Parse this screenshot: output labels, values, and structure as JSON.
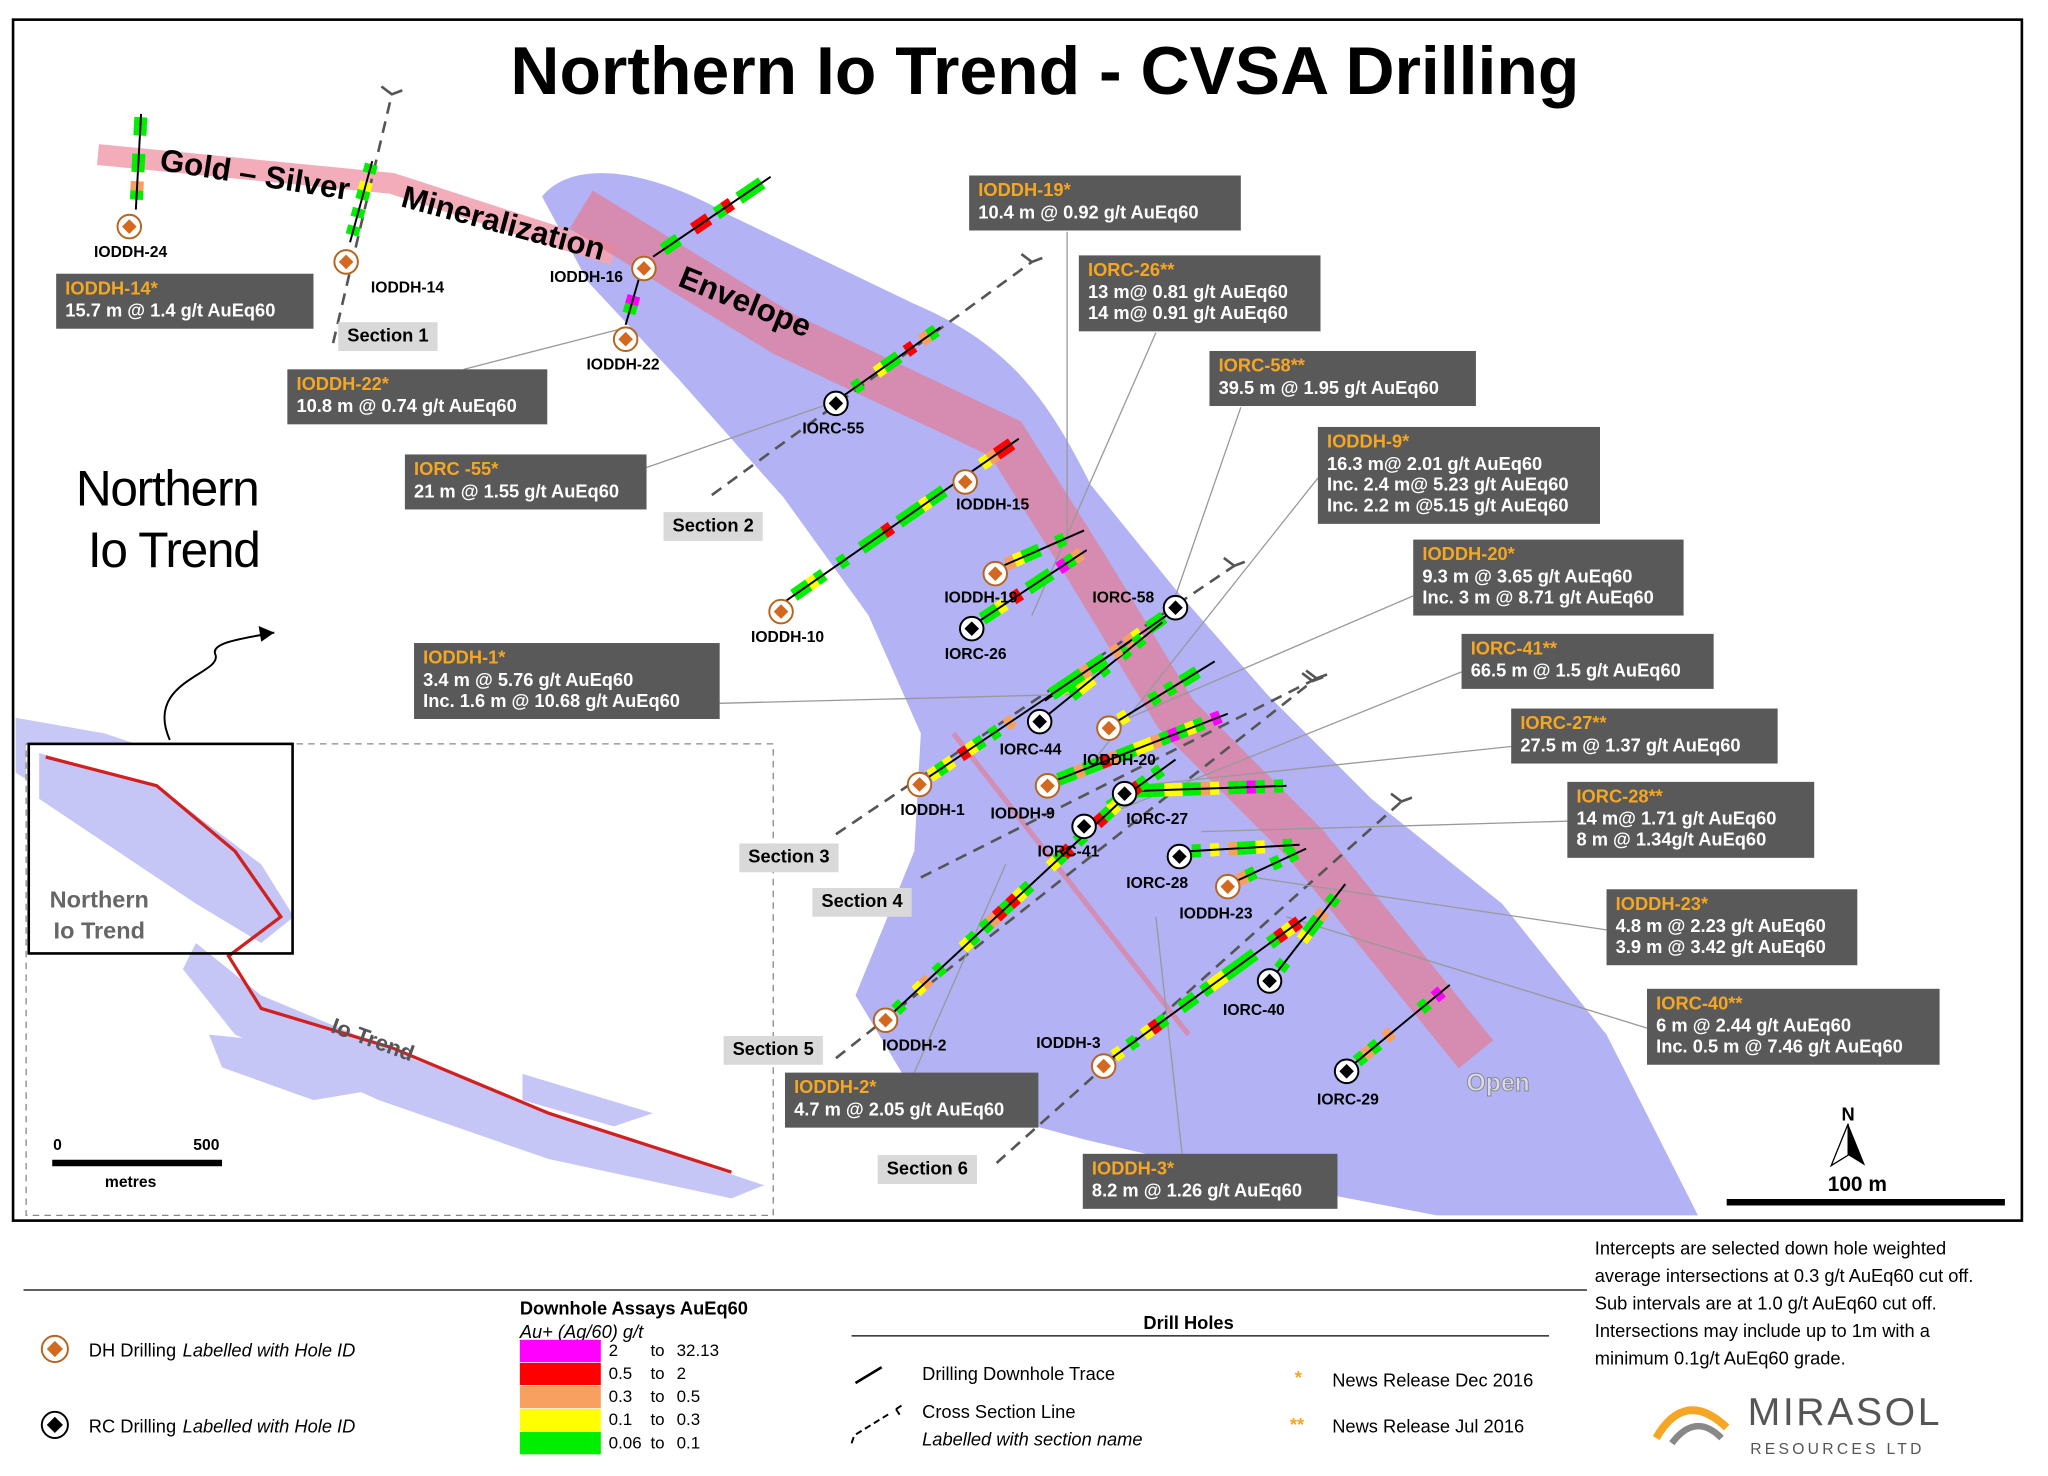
{
  "title": "Northern Io Trend - CVSA Drilling",
  "region_label": [
    "Northern",
    "Io Trend"
  ],
  "envelope_label": [
    "Gold – Silver",
    "Mineralization",
    "Envelope"
  ],
  "open_label": "Open",
  "holes": [
    {
      "id": "IODDH-24",
      "symbol": "DH"
    },
    {
      "id": "IODDH-14",
      "symbol": "DH"
    },
    {
      "id": "IODDH-16",
      "symbol": "DH"
    },
    {
      "id": "IODDH-22",
      "symbol": "DH"
    },
    {
      "id": "IORC-55",
      "symbol": "RC"
    },
    {
      "id": "IODDH-15",
      "symbol": "DH"
    },
    {
      "id": "IODDH-19",
      "symbol": "DH"
    },
    {
      "id": "IODDH-10",
      "symbol": "DH"
    },
    {
      "id": "IORC-26",
      "symbol": "RC"
    },
    {
      "id": "IORC-58",
      "symbol": "RC"
    },
    {
      "id": "IORC-44",
      "symbol": "RC"
    },
    {
      "id": "IODDH-20",
      "symbol": "DH"
    },
    {
      "id": "IODDH-1",
      "symbol": "DH"
    },
    {
      "id": "IODDH-9",
      "symbol": "DH"
    },
    {
      "id": "IORC-27",
      "symbol": "RC"
    },
    {
      "id": "IORC-41",
      "symbol": "RC"
    },
    {
      "id": "IORC-28",
      "symbol": "RC"
    },
    {
      "id": "IODDH-23",
      "symbol": "DH"
    },
    {
      "id": "IORC-40",
      "symbol": "RC"
    },
    {
      "id": "IODDH-2",
      "symbol": "DH"
    },
    {
      "id": "IODDH-3",
      "symbol": "DH"
    },
    {
      "id": "IORC-29",
      "symbol": "RC"
    }
  ],
  "callouts": [
    {
      "title": "IODDH-14*",
      "lines": [
        "15.7 m @ 1.4 g/t AuEq60"
      ]
    },
    {
      "title": "IODDH-22*",
      "lines": [
        "10.8 m @ 0.74 g/t AuEq60"
      ]
    },
    {
      "title": "IORC -55*",
      "lines": [
        "21 m @ 1.55 g/t AuEq60"
      ]
    },
    {
      "title": "IODDH-19*",
      "lines": [
        "10.4 m @ 0.92 g/t AuEq60"
      ]
    },
    {
      "title": "IORC-26**",
      "lines": [
        "13 m@ 0.81 g/t AuEq60",
        "14 m@ 0.91 g/t AuEq60"
      ]
    },
    {
      "title": "IORC-58**",
      "lines": [
        "39.5 m @ 1.95 g/t AuEq60"
      ]
    },
    {
      "title": "IODDH-9*",
      "lines": [
        "16.3 m@ 2.01 g/t AuEq60",
        "Inc. 2.4 m@ 5.23 g/t AuEq60",
        "Inc. 2.2 m @5.15 g/t AuEq60"
      ]
    },
    {
      "title": "IODDH-20*",
      "lines": [
        "9.3 m @ 3.65 g/t AuEq60",
        "Inc. 3 m @ 8.71 g/t AuEq60"
      ]
    },
    {
      "title": "IORC-41**",
      "lines": [
        "66.5 m @ 1.5 g/t AuEq60"
      ]
    },
    {
      "title": "IODDH-1*",
      "lines": [
        "3.4 m @ 5.76 g/t AuEq60",
        "Inc. 1.6 m @ 10.68 g/t AuEq60"
      ]
    },
    {
      "title": "IORC-27**",
      "lines": [
        "27.5 m @ 1.37 g/t AuEq60"
      ]
    },
    {
      "title": "IORC-28**",
      "lines": [
        "14 m@ 1.71 g/t AuEq60",
        "8 m @ 1.34g/t AuEq60"
      ]
    },
    {
      "title": "IODDH-23*",
      "lines": [
        "4.8 m @ 2.23 g/t AuEq60",
        "3.9 m @ 3.42 g/t AuEq60"
      ]
    },
    {
      "title": "IORC-40**",
      "lines": [
        "6 m @ 2.44 g/t AuEq60",
        "Inc. 0.5 m @ 7.46 g/t AuEq60"
      ]
    },
    {
      "title": "IODDH-2*",
      "lines": [
        "4.7 m @ 2.05 g/t AuEq60"
      ]
    },
    {
      "title": "IODDH-3*",
      "lines": [
        "8.2 m @ 1.26 g/t AuEq60"
      ]
    }
  ],
  "sections": [
    "Section 1",
    "Section 2",
    "Section 3",
    "Section 4",
    "Section 5",
    "Section 6"
  ],
  "north": "N",
  "scale_label": "100 m",
  "inset": {
    "region_label": [
      "Northern",
      "Io Trend"
    ],
    "trend_label": "Io Trend",
    "scale_ticks": [
      "0",
      "500"
    ],
    "scale_unit": "metres"
  },
  "legend": {
    "holes": [
      {
        "label": "DH Drilling",
        "note": "Labelled with Hole ID",
        "symbol": "DH"
      },
      {
        "label": "RC Drilling",
        "note": "Labelled with Hole ID",
        "symbol": "RC"
      }
    ],
    "assays": {
      "title": "Downhole Assays AuEq60",
      "subtitle": "Au+ (Ag/60) g/t",
      "rows": [
        {
          "from": "2",
          "sep": "to",
          "to": "32.13",
          "color": "#ff00ff"
        },
        {
          "from": "0.5",
          "sep": "to",
          "to": "2",
          "color": "#ff0000"
        },
        {
          "from": "0.3",
          "sep": "to",
          "to": "0.5",
          "color": "#f8a060"
        },
        {
          "from": "0.1",
          "sep": "to",
          "to": "0.3",
          "color": "#ffff00"
        },
        {
          "from": "0.06",
          "sep": "to",
          "to": "0.1",
          "color": "#00ee00"
        }
      ]
    },
    "drill_holes": {
      "title": "Drill Holes",
      "trace": "Drilling Downhole Trace",
      "section": "Cross Section Line",
      "section_note": "Labelled with section name"
    },
    "news": [
      {
        "mark": "*",
        "label": "News Release Dec 2016"
      },
      {
        "mark": "**",
        "label": "News Release Jul 2016"
      }
    ]
  },
  "notes": [
    "Intercepts are selected down hole weighted",
    "average intersections at 0.3 g/t AuEq60 cut off.",
    "Sub intervals are at 1.0 g/t AuEq60 cut off.",
    "Intersections may include up to 1m with a",
    "minimum 0.1g/t AuEq60 grade."
  ],
  "logo": {
    "name": "MIRASOL",
    "sub": "RESOURCES LTD"
  }
}
